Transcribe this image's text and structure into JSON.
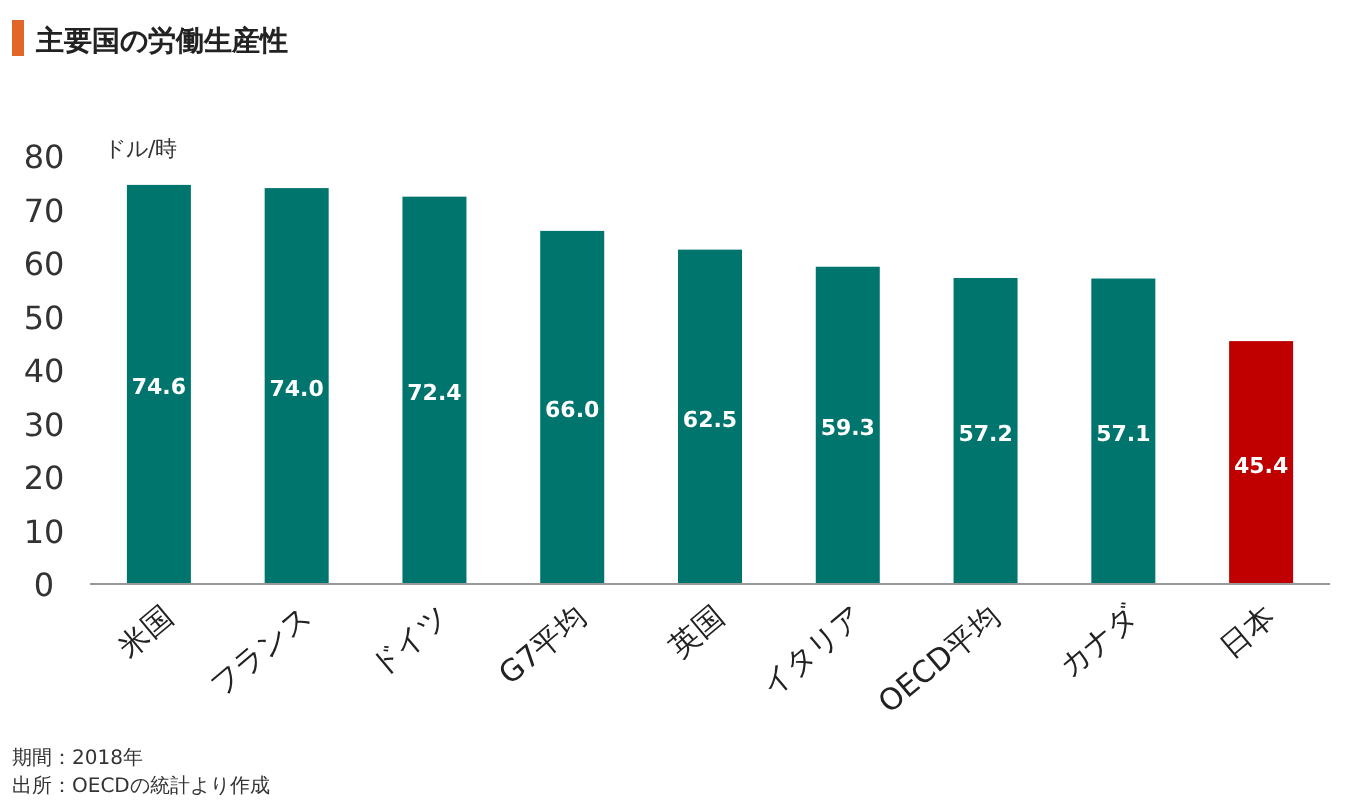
{
  "chart_data": {
    "type": "bar",
    "title": "主要国の労働生産性",
    "ylabel": "ドル/時",
    "categories": [
      "米国",
      "フランス",
      "ドイツ",
      "G7平均",
      "英国",
      "イタリア",
      "OECD平均",
      "カナダ",
      "日本"
    ],
    "values": [
      74.6,
      74.0,
      72.4,
      66.0,
      62.5,
      59.3,
      57.2,
      57.1,
      45.4
    ],
    "colors": [
      "#00756e",
      "#00756e",
      "#00756e",
      "#00756e",
      "#00756e",
      "#00756e",
      "#00756e",
      "#00756e",
      "#c00000"
    ],
    "value_labels": [
      "74.6",
      "74.0",
      "72.4",
      "66.0",
      "62.5",
      "59.3",
      "57.2",
      "57.1",
      "45.4"
    ],
    "ylim": [
      0,
      80
    ],
    "yticks": [
      0,
      10,
      20,
      30,
      40,
      50,
      60,
      70,
      80
    ],
    "annotations": [
      "期間：2018年",
      "出所：OECDの統計より作成"
    ]
  }
}
